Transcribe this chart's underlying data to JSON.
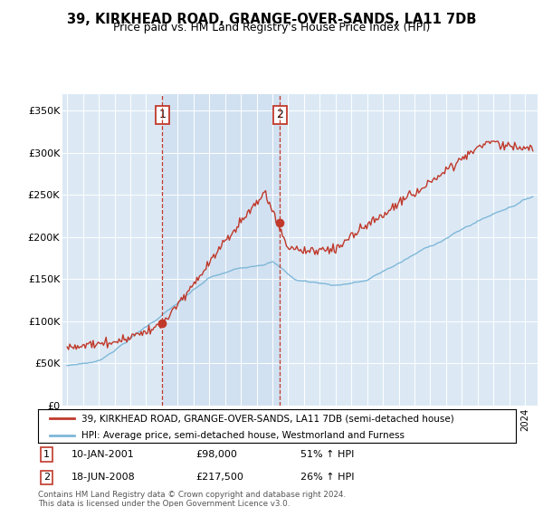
{
  "title": "39, KIRKHEAD ROAD, GRANGE-OVER-SANDS, LA11 7DB",
  "subtitle": "Price paid vs. HM Land Registry's House Price Index (HPI)",
  "legend_line1": "39, KIRKHEAD ROAD, GRANGE-OVER-SANDS, LA11 7DB (semi-detached house)",
  "legend_line2": "HPI: Average price, semi-detached house, Westmorland and Furness",
  "footnote": "Contains HM Land Registry data © Crown copyright and database right 2024.\nThis data is licensed under the Open Government Licence v3.0.",
  "sale1_date": "10-JAN-2001",
  "sale1_price": "£98,000",
  "sale1_hpi": "51% ↑ HPI",
  "sale2_date": "18-JUN-2008",
  "sale2_price": "£217,500",
  "sale2_hpi": "26% ↑ HPI",
  "sale1_x": 2001.03,
  "sale1_y": 98000,
  "sale2_x": 2008.47,
  "sale2_y": 217500,
  "hpi_color": "#7fb8d8",
  "price_color": "#c0392b",
  "vline_color": "#c0392b",
  "background_color": "#dce9f5",
  "highlight_color": "#cddff0",
  "ylim": [
    0,
    370000
  ],
  "xlim_start": 1994.7,
  "xlim_end": 2024.8
}
